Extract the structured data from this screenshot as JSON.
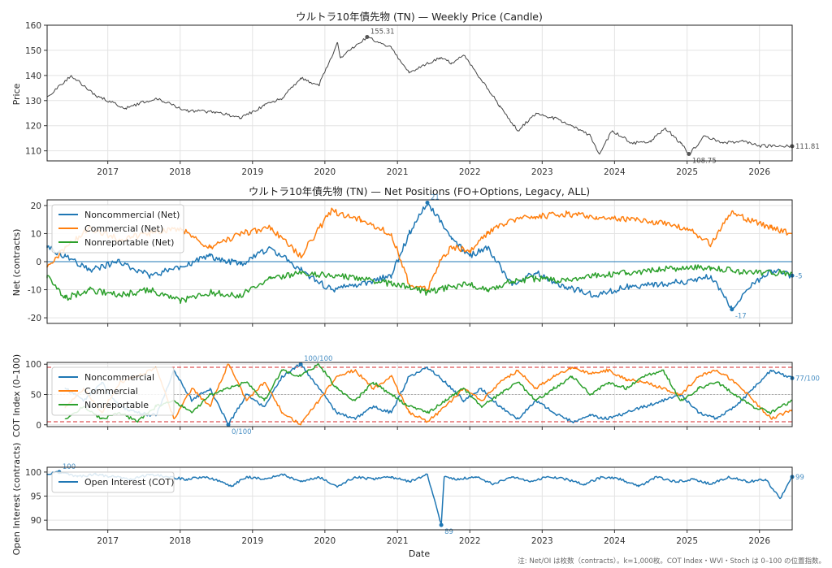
{
  "chart_data": [
    {
      "type": "line",
      "title": "ウルトラ10年債先物 (TN) — Weekly Price (Candle)",
      "ylabel": "Price",
      "xlabel": "",
      "ylim": [
        106,
        160
      ],
      "yticks": [
        110,
        120,
        130,
        140,
        150,
        160
      ],
      "xlim": [
        "2016-03-01",
        "2026-06-15"
      ],
      "xticks": [
        "2017",
        "2018",
        "2019",
        "2020",
        "2021",
        "2022",
        "2023",
        "2024",
        "2025",
        "2026"
      ],
      "grid": true,
      "series": [
        {
          "name": "",
          "color": "#444444",
          "x": [
            "2016-03-01",
            "2016-07-01",
            "2016-11-01",
            "2017-04-01",
            "2017-09-01",
            "2018-02-01",
            "2018-07-01",
            "2018-11-01",
            "2019-03-01",
            "2019-06-01",
            "2019-09-01",
            "2019-12-01",
            "2020-03-05",
            "2020-03-20",
            "2020-08-01",
            "2020-12-01",
            "2021-03-01",
            "2021-08-01",
            "2021-10-01",
            "2021-12-01",
            "2022-03-01",
            "2022-06-01",
            "2022-09-01",
            "2022-12-01",
            "2023-03-01",
            "2023-06-01",
            "2023-09-01",
            "2023-10-15",
            "2023-12-20",
            "2024-04-01",
            "2024-07-01",
            "2024-09-15",
            "2024-12-01",
            "2025-01-10",
            "2025-04-01",
            "2025-07-01",
            "2025-10-01",
            "2026-01-01",
            "2026-06-15"
          ],
          "y": [
            131.5,
            140,
            132,
            127,
            131,
            126,
            125.5,
            123,
            128,
            131,
            139,
            136,
            153,
            147,
            155.3,
            151,
            141,
            147,
            145,
            148,
            138,
            128,
            118,
            125,
            123,
            120,
            116,
            108.9,
            118,
            113,
            114,
            119,
            113,
            108.75,
            116,
            113,
            114,
            112,
            111.81
          ]
        }
      ],
      "annotations": [
        {
          "text": "155.31",
          "x": "2020-08-01",
          "y": 155.31
        },
        {
          "text": "108.75",
          "x": "2025-01-10",
          "y": 108.75
        },
        {
          "text": "111.81",
          "x": "2026-06-15",
          "y": 111.81
        }
      ]
    },
    {
      "type": "line",
      "title": "ウルトラ10年債先物 (TN) — Net Positions (FO+Options, Legacy, ALL)",
      "ylabel": "Net (contracts)",
      "xlabel": "",
      "ylim": [
        -22,
        22
      ],
      "yticks": [
        -20,
        -10,
        0,
        10,
        20
      ],
      "xlim": [
        "2016-03-01",
        "2026-06-15"
      ],
      "grid": true,
      "legend": "top-left",
      "series": [
        {
          "name": "Noncommercial (Net)",
          "color": "#1f77b4",
          "x": [
            "2016-03-01",
            "2016-06-01",
            "2016-10-01",
            "2017-03-01",
            "2017-08-01",
            "2018-01-01",
            "2018-06-01",
            "2018-11-01",
            "2019-04-01",
            "2019-09-01",
            "2020-02-01",
            "2020-07-01",
            "2020-12-01",
            "2021-03-01",
            "2021-06-01",
            "2021-08-01",
            "2021-10-01",
            "2022-01-01",
            "2022-04-01",
            "2022-08-01",
            "2022-12-01",
            "2023-05-01",
            "2023-10-01",
            "2024-03-01",
            "2024-08-01",
            "2025-01-01",
            "2025-05-01",
            "2025-08-15",
            "2025-11-01",
            "2026-03-01",
            "2026-06-15"
          ],
          "y": [
            5,
            2,
            -3,
            0,
            -5,
            -2,
            2,
            -1,
            5,
            -3,
            -10,
            -8,
            -5,
            10,
            21,
            15,
            8,
            2,
            5,
            -8,
            -4,
            -9,
            -12,
            -9,
            -8,
            -7,
            -5,
            -17,
            -10,
            -3,
            -5
          ]
        },
        {
          "name": "Commercial (Net)",
          "color": "#ff7f0e",
          "x": [
            "2016-03-01",
            "2016-06-01",
            "2016-10-01",
            "2017-03-01",
            "2017-08-01",
            "2018-01-01",
            "2018-06-01",
            "2018-11-01",
            "2019-04-01",
            "2019-09-01",
            "2020-02-01",
            "2020-07-01",
            "2020-12-01",
            "2021-03-01",
            "2021-06-01",
            "2021-08-01",
            "2021-10-01",
            "2022-01-01",
            "2022-04-01",
            "2022-08-01",
            "2022-12-01",
            "2023-05-01",
            "2023-10-01",
            "2024-03-01",
            "2024-08-01",
            "2025-01-01",
            "2025-05-01",
            "2025-08-15",
            "2025-11-01",
            "2026-03-01",
            "2026-06-15"
          ],
          "y": [
            -2,
            5,
            12,
            8,
            10,
            12,
            5,
            10,
            12,
            2,
            18,
            15,
            10,
            -8,
            -10,
            0,
            5,
            4,
            10,
            15,
            16,
            17,
            16,
            15,
            14,
            12,
            6,
            18,
            15,
            12,
            10
          ]
        },
        {
          "name": "Nonreportable (Net)",
          "color": "#2ca02c",
          "x": [
            "2016-03-01",
            "2016-06-01",
            "2016-10-01",
            "2017-03-01",
            "2017-08-01",
            "2018-01-01",
            "2018-06-01",
            "2018-11-01",
            "2019-04-01",
            "2019-09-01",
            "2020-02-01",
            "2020-07-01",
            "2020-12-01",
            "2021-03-01",
            "2021-06-01",
            "2021-08-01",
            "2021-10-01",
            "2022-01-01",
            "2022-04-01",
            "2022-08-01",
            "2022-12-01",
            "2023-05-01",
            "2023-10-01",
            "2024-03-01",
            "2024-08-01",
            "2025-01-01",
            "2025-05-01",
            "2025-08-15",
            "2025-11-01",
            "2026-03-01",
            "2026-06-15"
          ],
          "y": [
            -5,
            -13,
            -10,
            -12,
            -10,
            -14,
            -11,
            -12,
            -6,
            -4,
            -5,
            -6,
            -8,
            -9,
            -11,
            -10,
            -9,
            -8,
            -10,
            -7,
            -6,
            -7,
            -5,
            -4,
            -3,
            -2,
            -2,
            -3,
            -4,
            -4,
            -4
          ]
        }
      ],
      "annotations": [
        {
          "text": "21",
          "x": "2021-06-01",
          "y": 21
        },
        {
          "text": "-17",
          "x": "2025-08-15",
          "y": -17
        },
        {
          "text": "-5",
          "x": "2026-06-15",
          "y": -5
        }
      ]
    },
    {
      "type": "line",
      "title": "",
      "ylabel": "COT Index (0–100)",
      "xlabel": "",
      "ylim": [
        -3,
        103
      ],
      "yticks": [
        0,
        50,
        100
      ],
      "xlim": [
        "2016-03-01",
        "2026-06-15"
      ],
      "reference_lines": [
        5,
        50,
        95
      ],
      "grid": true,
      "legend": "top-left",
      "series": [
        {
          "name": "Noncommercial",
          "color": "#1f77b4",
          "x": [
            "2016-06-01",
            "2016-09-01",
            "2016-12-01",
            "2017-03-01",
            "2017-06-01",
            "2017-09-01",
            "2017-12-01",
            "2018-03-01",
            "2018-06-01",
            "2018-09-01",
            "2018-12-01",
            "2019-03-01",
            "2019-06-01",
            "2019-09-01",
            "2019-12-01",
            "2020-03-01",
            "2020-06-01",
            "2020-09-01",
            "2020-12-01",
            "2021-03-01",
            "2021-06-01",
            "2021-09-01",
            "2021-12-01",
            "2022-03-01",
            "2022-06-01",
            "2022-09-01",
            "2022-12-01",
            "2023-03-01",
            "2023-06-01",
            "2023-09-01",
            "2023-12-01",
            "2024-03-01",
            "2024-06-01",
            "2024-09-01",
            "2024-12-01",
            "2025-03-01",
            "2025-06-01",
            "2025-09-01",
            "2025-12-01",
            "2026-03-01",
            "2026-06-15"
          ],
          "y": [
            60,
            40,
            70,
            30,
            20,
            15,
            90,
            40,
            60,
            0,
            50,
            30,
            80,
            100,
            60,
            20,
            10,
            30,
            20,
            80,
            95,
            70,
            40,
            60,
            30,
            10,
            40,
            20,
            5,
            15,
            10,
            20,
            30,
            40,
            50,
            20,
            10,
            30,
            60,
            90,
            77
          ]
        },
        {
          "name": "Commercial",
          "color": "#ff7f0e",
          "x": [
            "2016-06-01",
            "2016-09-01",
            "2016-12-01",
            "2017-03-01",
            "2017-06-01",
            "2017-09-01",
            "2017-12-01",
            "2018-03-01",
            "2018-06-01",
            "2018-09-01",
            "2018-12-01",
            "2019-03-01",
            "2019-06-01",
            "2019-09-01",
            "2019-12-01",
            "2020-03-01",
            "2020-06-01",
            "2020-09-01",
            "2020-12-01",
            "2021-03-01",
            "2021-06-01",
            "2021-09-01",
            "2021-12-01",
            "2022-03-01",
            "2022-06-01",
            "2022-09-01",
            "2022-12-01",
            "2023-03-01",
            "2023-06-01",
            "2023-09-01",
            "2023-12-01",
            "2024-03-01",
            "2024-06-01",
            "2024-09-01",
            "2024-12-01",
            "2025-03-01",
            "2025-06-01",
            "2025-09-01",
            "2025-12-01",
            "2026-03-01",
            "2026-06-15"
          ],
          "y": [
            30,
            60,
            20,
            70,
            80,
            95,
            10,
            60,
            30,
            100,
            40,
            70,
            20,
            0,
            40,
            80,
            90,
            60,
            80,
            20,
            5,
            30,
            60,
            40,
            70,
            90,
            60,
            80,
            95,
            85,
            90,
            75,
            70,
            60,
            50,
            80,
            90,
            70,
            40,
            10,
            25
          ]
        },
        {
          "name": "Nonreportable",
          "color": "#2ca02c",
          "x": [
            "2016-06-01",
            "2016-09-01",
            "2016-12-01",
            "2017-03-01",
            "2017-06-01",
            "2017-09-01",
            "2017-12-01",
            "2018-03-01",
            "2018-06-01",
            "2018-09-01",
            "2018-12-01",
            "2019-03-01",
            "2019-06-01",
            "2019-09-01",
            "2019-12-01",
            "2020-03-01",
            "2020-06-01",
            "2020-09-01",
            "2020-12-01",
            "2021-03-01",
            "2021-06-01",
            "2021-09-01",
            "2021-12-01",
            "2022-03-01",
            "2022-06-01",
            "2022-09-01",
            "2022-12-01",
            "2023-03-01",
            "2023-06-01",
            "2023-09-01",
            "2023-12-01",
            "2024-03-01",
            "2024-06-01",
            "2024-09-01",
            "2024-12-01",
            "2025-03-01",
            "2025-06-01",
            "2025-09-01",
            "2025-12-01",
            "2026-03-01",
            "2026-06-15"
          ],
          "y": [
            10,
            30,
            10,
            20,
            5,
            30,
            40,
            20,
            50,
            60,
            70,
            40,
            90,
            80,
            100,
            60,
            40,
            70,
            50,
            30,
            20,
            40,
            60,
            30,
            50,
            70,
            40,
            60,
            80,
            50,
            70,
            60,
            80,
            90,
            40,
            60,
            70,
            50,
            30,
            20,
            40
          ]
        }
      ],
      "annotations": [
        {
          "text": "100/100",
          "x": "2019-09-01",
          "y": 100
        },
        {
          "text": "0/100",
          "x": "2018-09-01",
          "y": 0
        },
        {
          "text": "77/100",
          "x": "2026-06-15",
          "y": 77
        }
      ]
    },
    {
      "type": "line",
      "title": "",
      "ylabel": "Open Interest (contracts)",
      "xlabel": "Date",
      "ylim": [
        88,
        101
      ],
      "yticks": [
        90,
        95,
        100
      ],
      "xlim": [
        "2016-03-01",
        "2026-06-15"
      ],
      "xticks": [
        "2017",
        "2018",
        "2019",
        "2020",
        "2021",
        "2022",
        "2023",
        "2024",
        "2025",
        "2026"
      ],
      "grid": true,
      "legend": "top-left",
      "series": [
        {
          "name": "Open Interest (COT)",
          "color": "#1f77b4",
          "x": [
            "2016-03-01",
            "2016-05-01",
            "2016-08-01",
            "2016-11-01",
            "2017-02-01",
            "2017-05-01",
            "2017-08-01",
            "2017-11-01",
            "2018-02-01",
            "2018-05-01",
            "2018-08-01",
            "2018-09-15",
            "2018-12-01",
            "2019-03-01",
            "2019-06-01",
            "2019-09-01",
            "2019-12-01",
            "2020-03-01",
            "2020-06-01",
            "2020-09-01",
            "2020-12-01",
            "2021-03-01",
            "2021-06-01",
            "2021-08-10",
            "2021-08-25",
            "2021-11-01",
            "2022-02-01",
            "2022-05-01",
            "2022-08-01",
            "2022-11-01",
            "2023-02-01",
            "2023-05-01",
            "2023-08-01",
            "2023-11-01",
            "2024-02-01",
            "2024-05-01",
            "2024-08-01",
            "2024-11-01",
            "2025-02-01",
            "2025-05-01",
            "2025-08-01",
            "2025-11-01",
            "2026-02-01",
            "2026-04-15",
            "2026-06-15"
          ],
          "y": [
            99.5,
            100,
            99,
            99.5,
            99,
            98.5,
            99.5,
            99,
            98.5,
            99,
            98,
            97,
            99,
            98.5,
            99.5,
            98,
            99,
            97,
            99,
            98.5,
            99,
            98,
            99.5,
            89,
            99,
            98.5,
            99,
            97.5,
            99,
            98,
            99,
            98.5,
            97.5,
            99,
            98.5,
            97,
            99,
            98,
            98.5,
            97.5,
            99,
            98,
            98.5,
            94.5,
            99
          ]
        }
      ],
      "annotations": [
        {
          "text": "100",
          "x": "2016-05-01",
          "y": 100
        },
        {
          "text": "89",
          "x": "2021-08-10",
          "y": 89
        },
        {
          "text": "99",
          "x": "2026-06-15",
          "y": 99
        }
      ]
    }
  ],
  "footnote": "注: Net/OI は枚数（contracts）。k=1,000枚。COT Index・WVI・Stoch は 0–100 の位置指数。"
}
